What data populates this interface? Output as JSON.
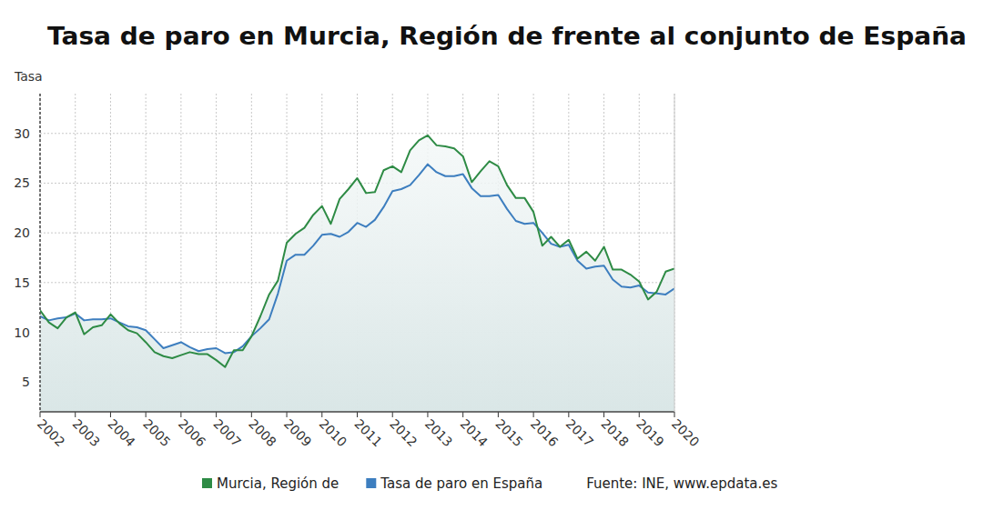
{
  "chart_data": {
    "type": "line",
    "title": "Tasa de paro en Murcia, Región de frente al conjunto de España",
    "y_label": "Tasa",
    "source": "Fuente: INE, www.epdata.es",
    "x": [
      2002,
      2002.25,
      2002.5,
      2002.75,
      2003,
      2003.25,
      2003.5,
      2003.75,
      2004,
      2004.25,
      2004.5,
      2004.75,
      2005,
      2005.25,
      2005.5,
      2005.75,
      2006,
      2006.25,
      2006.5,
      2006.75,
      2007,
      2007.25,
      2007.5,
      2007.75,
      2008,
      2008.25,
      2008.5,
      2008.75,
      2009,
      2009.25,
      2009.5,
      2009.75,
      2010,
      2010.25,
      2010.5,
      2010.75,
      2011,
      2011.25,
      2011.5,
      2011.75,
      2012,
      2012.25,
      2012.5,
      2012.75,
      2013,
      2013.25,
      2013.5,
      2013.75,
      2014,
      2014.25,
      2014.5,
      2014.75,
      2015,
      2015.25,
      2015.5,
      2015.75,
      2016,
      2016.25,
      2016.5,
      2016.75,
      2017,
      2017.25,
      2017.5,
      2017.75,
      2018,
      2018.25,
      2018.5,
      2018.75,
      2019,
      2019.25,
      2019.5,
      2019.75,
      2020
    ],
    "series": [
      {
        "name": "Murcia, Región de",
        "color": "#2e8b45",
        "values": [
          12.2,
          11.0,
          10.4,
          11.5,
          12.0,
          9.8,
          10.5,
          10.7,
          11.8,
          10.9,
          10.2,
          9.9,
          9.0,
          8.0,
          7.6,
          7.4,
          7.7,
          8.0,
          7.8,
          7.8,
          7.2,
          6.5,
          8.2,
          8.2,
          9.6,
          11.6,
          13.8,
          15.2,
          19.0,
          19.9,
          20.5,
          21.8,
          22.7,
          20.9,
          23.4,
          24.4,
          25.5,
          24.0,
          24.1,
          26.3,
          26.7,
          26.1,
          28.3,
          29.3,
          29.8,
          28.8,
          28.7,
          28.5,
          27.7,
          25.1,
          26.2,
          27.2,
          26.7,
          24.8,
          23.5,
          23.5,
          22.1,
          18.7,
          19.6,
          18.6,
          19.3,
          17.4,
          18.1,
          17.2,
          18.6,
          16.3,
          16.3,
          15.8,
          15.1,
          13.3,
          14.1,
          16.1,
          16.4
        ]
      },
      {
        "name": "Tasa de paro en España",
        "color": "#3d7ebf",
        "values": [
          11.6,
          11.2,
          11.4,
          11.5,
          11.9,
          11.2,
          11.3,
          11.3,
          11.4,
          11.0,
          10.6,
          10.5,
          10.2,
          9.3,
          8.4,
          8.7,
          9.0,
          8.5,
          8.1,
          8.3,
          8.4,
          7.9,
          8.0,
          8.6,
          9.6,
          10.4,
          11.3,
          13.9,
          17.2,
          17.8,
          17.8,
          18.7,
          19.8,
          19.9,
          19.6,
          20.1,
          21.0,
          20.6,
          21.3,
          22.6,
          24.2,
          24.4,
          24.8,
          25.8,
          26.9,
          26.1,
          25.7,
          25.7,
          25.9,
          24.5,
          23.7,
          23.7,
          23.8,
          22.4,
          21.2,
          20.9,
          21.0,
          20.0,
          18.9,
          18.6,
          18.8,
          17.2,
          16.4,
          16.6,
          16.7,
          15.3,
          14.6,
          14.5,
          14.7,
          14.0,
          13.9,
          13.8,
          14.4
        ]
      }
    ],
    "xlim": [
      2002,
      2020
    ],
    "xticks": [
      2002,
      2003,
      2004,
      2005,
      2006,
      2007,
      2008,
      2009,
      2010,
      2011,
      2012,
      2013,
      2014,
      2015,
      2016,
      2017,
      2018,
      2019,
      2020
    ],
    "ylim": [
      2,
      34
    ],
    "yticks": [
      5,
      10,
      15,
      20,
      25,
      30
    ],
    "grid": true,
    "legend": "bottom"
  }
}
